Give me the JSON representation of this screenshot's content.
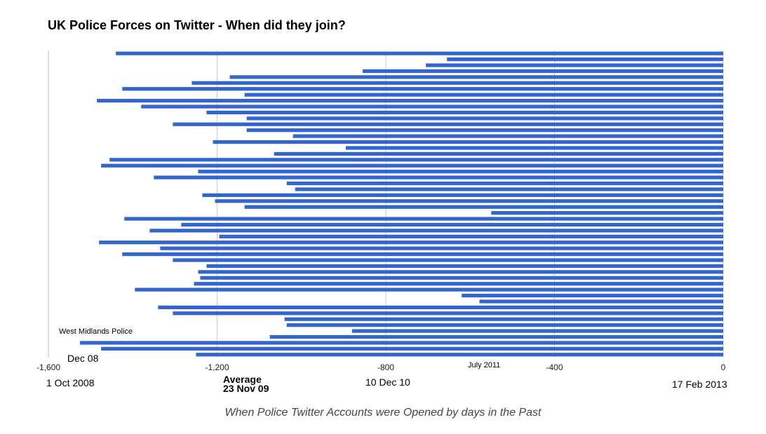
{
  "chart_data": {
    "type": "bar",
    "orientation": "horizontal",
    "title": "UK Police Forces on Twitter - When did they join?",
    "xlabel": "When Police Twitter Accounts were Opened by days in the Past",
    "ylabel": "",
    "xlim": [
      -1600,
      0
    ],
    "x_ticks": [
      -1600,
      -1200,
      -800,
      -400,
      0
    ],
    "x_tick_labels": [
      "-1,600",
      "-1,200",
      "-800",
      "-400",
      "0"
    ],
    "grid": true,
    "bar_color": "#3366cc",
    "values": [
      -1440,
      -655,
      -705,
      -855,
      -1170,
      -1260,
      -1425,
      -1135,
      -1485,
      -1380,
      -1225,
      -1130,
      -1305,
      -1130,
      -1020,
      -1210,
      -895,
      -1065,
      -1455,
      -1475,
      -1245,
      -1350,
      -1035,
      -1015,
      -1235,
      -1205,
      -1135,
      -550,
      -1420,
      -1285,
      -1360,
      -1195,
      -1480,
      -1335,
      -1425,
      -1305,
      -1225,
      -1245,
      -1240,
      -1255,
      -1395,
      -620,
      -578,
      -1340,
      -1305,
      -1040,
      -1035,
      -880,
      -1075,
      -1525,
      -1475,
      -1250
    ],
    "annotations": [
      {
        "text": "West Midlands Police",
        "x": -1580
      },
      {
        "text": "Dec 08",
        "x": -1560
      },
      {
        "text": "1 Oct 2008",
        "x": -1600
      },
      {
        "text": "Average",
        "x": -1200
      },
      {
        "text": "23 Nov 09",
        "x": -1200
      },
      {
        "text": "10 Dec 10",
        "x": -800
      },
      {
        "text": "July 2011",
        "x": -570
      },
      {
        "text": "17 Feb 2013",
        "x": 0
      }
    ]
  }
}
